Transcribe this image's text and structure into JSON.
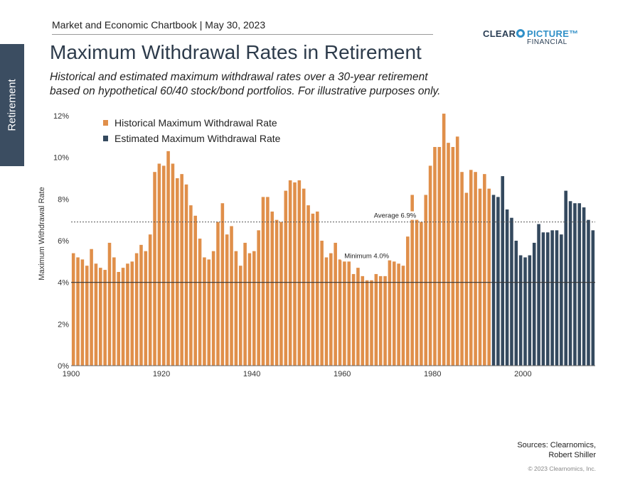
{
  "header": {
    "chartbook": "Market and Economic Chartbook | May 30, 2023",
    "side_tab": "Retirement",
    "logo": {
      "clear": "CLEAR",
      "picture": "PICTURE™",
      "financial": "FINANCIAL",
      "mark_color": "#2f8fc7"
    }
  },
  "title": "Maximum Withdrawal Rates in Retirement",
  "subtitle_line1": "Historical and estimated maximum withdrawal rates over a 30-year retirement",
  "subtitle_line2": "based on hypothetical 60/40 stock/bond portfolios. For illustrative purposes only.",
  "chart_data": {
    "type": "bar",
    "ylabel": "Maximum Withdrawal Rate",
    "ylim": [
      0,
      12
    ],
    "yticks": [
      0,
      2,
      4,
      6,
      8,
      10,
      12
    ],
    "ytick_labels": [
      "0%",
      "2%",
      "4%",
      "6%",
      "8%",
      "10%",
      "12%"
    ],
    "xlim": [
      1900,
      2016
    ],
    "xticks": [
      1900,
      1920,
      1940,
      1960,
      1980,
      2000
    ],
    "xtick_labels": [
      "1900",
      "1920",
      "1940",
      "1960",
      "1980",
      "2000"
    ],
    "legend_position": "top-left",
    "series": [
      {
        "name": "Historical Maximum Withdrawal Rate",
        "color": "#e08f4a",
        "start_year": 1900,
        "values": [
          5.4,
          5.2,
          5.1,
          4.8,
          5.6,
          4.9,
          4.7,
          4.6,
          5.9,
          5.2,
          4.5,
          4.7,
          4.9,
          5.0,
          5.4,
          5.8,
          5.5,
          6.3,
          9.3,
          9.7,
          9.6,
          10.3,
          9.7,
          9.0,
          9.2,
          8.7,
          7.7,
          7.2,
          6.1,
          5.2,
          5.1,
          5.5,
          6.9,
          7.8,
          6.3,
          6.7,
          5.5,
          4.8,
          5.9,
          5.4,
          5.5,
          6.5,
          8.1,
          8.1,
          7.4,
          7.0,
          6.9,
          8.4,
          8.9,
          8.8,
          8.9,
          8.5,
          7.7,
          7.3,
          7.4,
          6.0,
          5.2,
          5.4,
          5.9,
          5.1,
          5.0,
          5.0,
          4.4,
          4.7,
          4.3,
          4.1,
          4.1,
          4.4,
          4.3,
          4.3,
          5.1,
          5.0,
          4.9,
          4.8,
          6.2,
          8.2,
          7.3,
          6.9,
          8.2,
          9.6,
          10.5,
          10.5,
          12.1,
          10.7,
          10.5,
          11.0,
          9.3,
          8.3,
          9.4,
          9.3,
          8.5,
          9.2,
          8.5
        ]
      },
      {
        "name": "Estimated Maximum Withdrawal Rate",
        "color": "#34495e",
        "start_year": 1993,
        "values": [
          8.2,
          8.1,
          9.1,
          7.5,
          7.1,
          6.0,
          5.3,
          5.2,
          5.3,
          5.9,
          6.8,
          6.4,
          6.4,
          6.5,
          6.5,
          6.3,
          8.4,
          7.9,
          7.8,
          7.8,
          7.6,
          7.0,
          6.5
        ]
      }
    ],
    "reference_lines": [
      {
        "label": "Average 6.9%",
        "value": 6.9,
        "style": "dotted"
      },
      {
        "label": "Minimum 4.0%",
        "value": 4.0,
        "style": "solid"
      }
    ]
  },
  "footer": {
    "sources_line1": "Sources: Clearnomics,",
    "sources_line2": "Robert Shiller",
    "copyright": "© 2023 Clearnomics, Inc."
  }
}
